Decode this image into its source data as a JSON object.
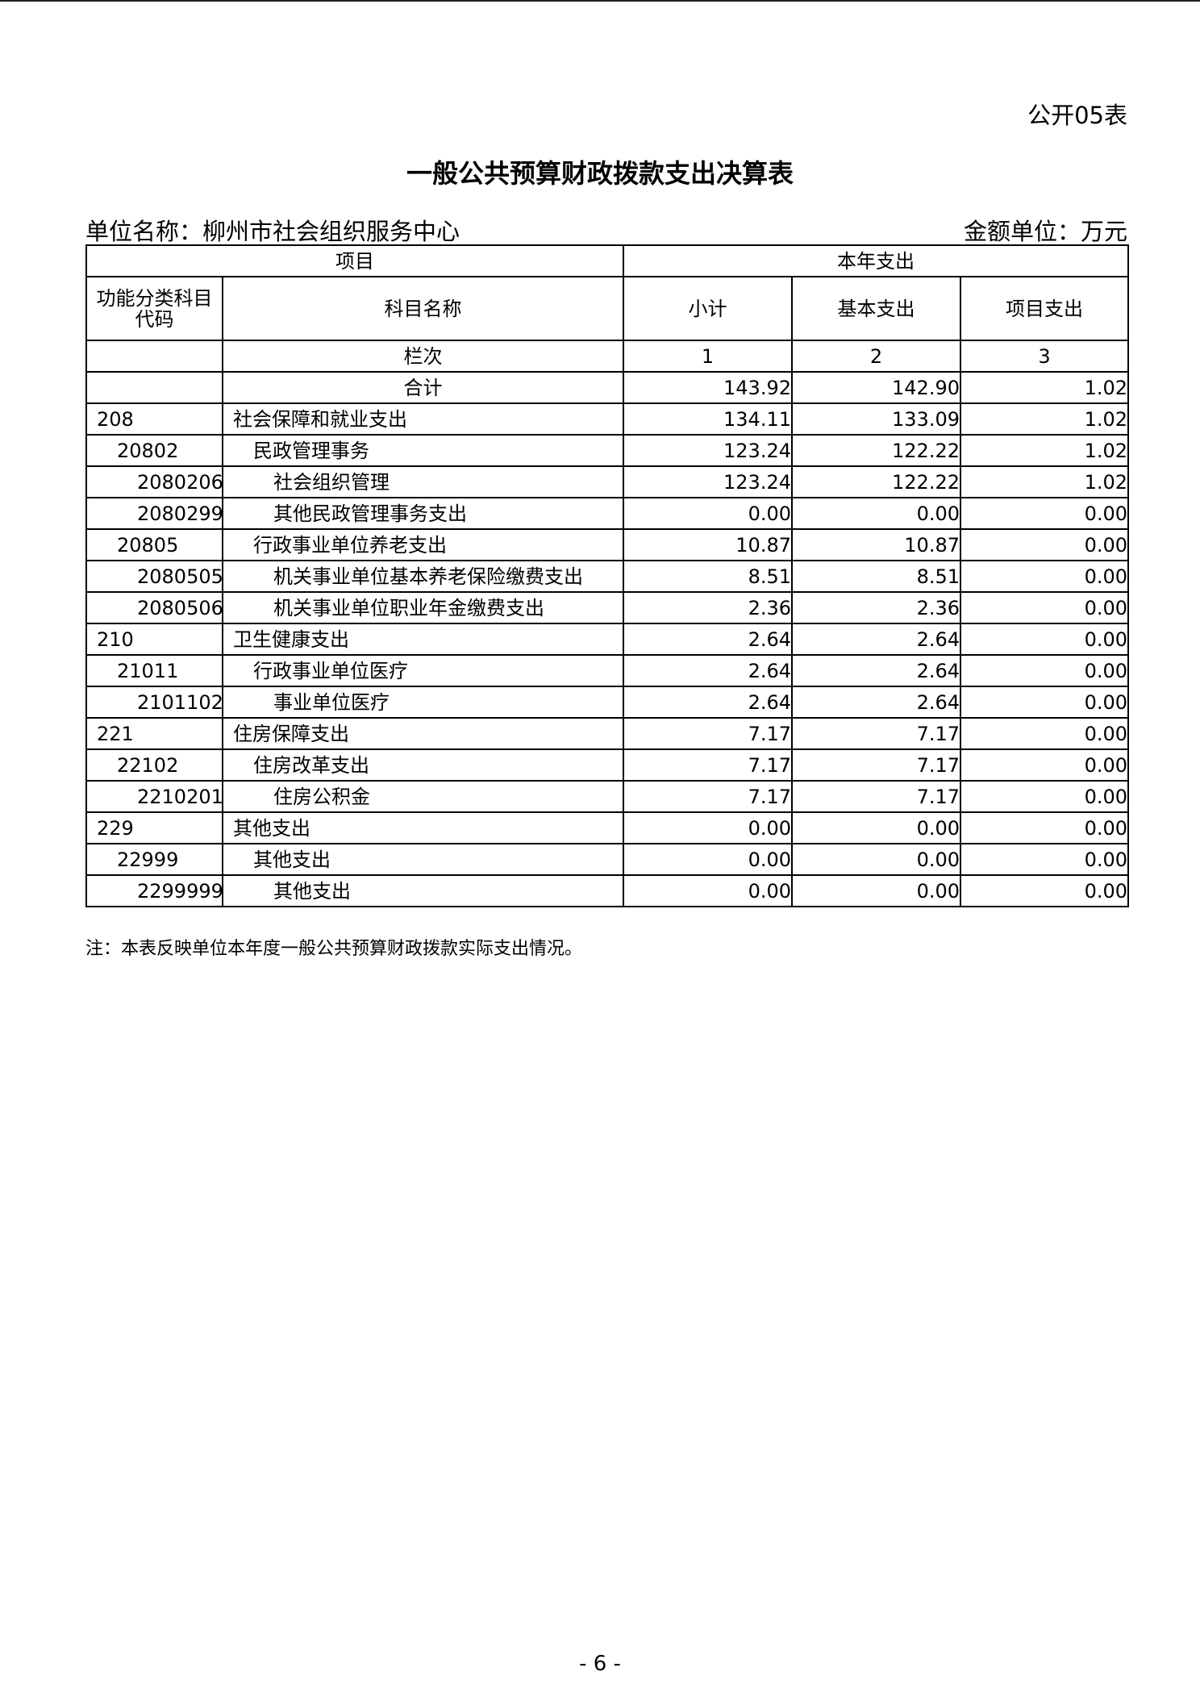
{
  "header": {
    "form_no": "公开05表",
    "title": "一般公共预算财政拨款支出决算表",
    "unit_name": "单位名称：柳州市社会组织服务中心",
    "amount_unit": "金额单位：万元"
  },
  "table": {
    "head": {
      "item": "项目",
      "current": "本年支出",
      "code": "功能分类科目代码",
      "name": "科目名称",
      "cols": [
        "小计",
        "基本支出",
        "项目支出"
      ],
      "row_label": "栏次",
      "col_numbers": [
        "1",
        "2",
        "3"
      ]
    },
    "total": {
      "label": "合计",
      "values": [
        "143.92",
        "142.90",
        "1.02"
      ]
    },
    "rows": [
      {
        "code": "208",
        "name": "社会保障和就业支出",
        "values": [
          "134.11",
          "133.09",
          "1.02"
        ]
      },
      {
        "code": "20802",
        "name": "民政管理事务",
        "values": [
          "123.24",
          "122.22",
          "1.02"
        ]
      },
      {
        "code": "2080206",
        "name": "社会组织管理",
        "values": [
          "123.24",
          "122.22",
          "1.02"
        ]
      },
      {
        "code": "2080299",
        "name": "其他民政管理事务支出",
        "values": [
          "0.00",
          "0.00",
          "0.00"
        ]
      },
      {
        "code": "20805",
        "name": "行政事业单位养老支出",
        "values": [
          "10.87",
          "10.87",
          "0.00"
        ]
      },
      {
        "code": "2080505",
        "name": "机关事业单位基本养老保险缴费支出",
        "values": [
          "8.51",
          "8.51",
          "0.00"
        ]
      },
      {
        "code": "2080506",
        "name": "机关事业单位职业年金缴费支出",
        "values": [
          "2.36",
          "2.36",
          "0.00"
        ]
      },
      {
        "code": "210",
        "name": "卫生健康支出",
        "values": [
          "2.64",
          "2.64",
          "0.00"
        ]
      },
      {
        "code": "21011",
        "name": "行政事业单位医疗",
        "values": [
          "2.64",
          "2.64",
          "0.00"
        ]
      },
      {
        "code": "2101102",
        "name": "事业单位医疗",
        "values": [
          "2.64",
          "2.64",
          "0.00"
        ]
      },
      {
        "code": "221",
        "name": "住房保障支出",
        "values": [
          "7.17",
          "7.17",
          "0.00"
        ]
      },
      {
        "code": "22102",
        "name": "住房改革支出",
        "values": [
          "7.17",
          "7.17",
          "0.00"
        ]
      },
      {
        "code": "2210201",
        "name": "住房公积金",
        "values": [
          "7.17",
          "7.17",
          "0.00"
        ]
      },
      {
        "code": "229",
        "name": "其他支出",
        "values": [
          "0.00",
          "0.00",
          "0.00"
        ]
      },
      {
        "code": "22999",
        "name": "其他支出",
        "values": [
          "0.00",
          "0.00",
          "0.00"
        ]
      },
      {
        "code": "2299999",
        "name": "其他支出",
        "values": [
          "0.00",
          "0.00",
          "0.00"
        ]
      }
    ]
  },
  "note": "注：本表反映单位本年度一般公共预算财政拨款实际支出情况。",
  "page_number": "- 6 -"
}
